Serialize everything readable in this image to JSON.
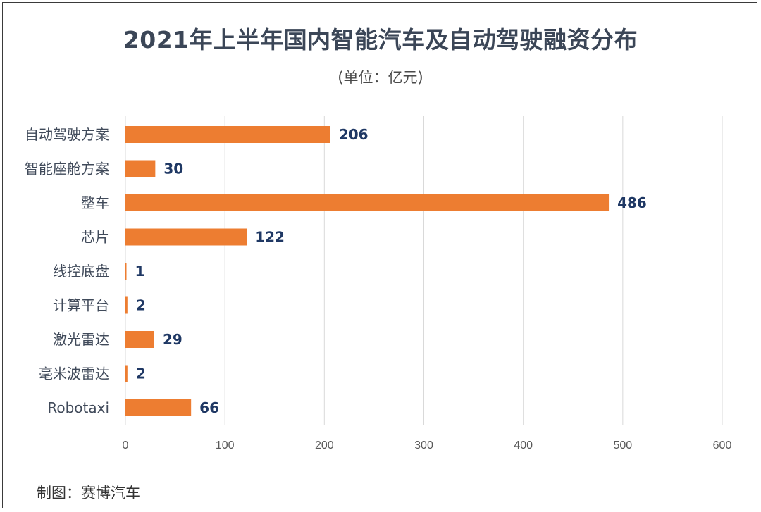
{
  "title": "2021年上半年国内智能汽车及自动驾驶融资分布",
  "subtitle": "(单位：亿元)",
  "source": "制图：赛博汽车",
  "colors": {
    "bar": "#ed7d31",
    "value_label": "#1f3864",
    "grid": "#d9d9d9"
  },
  "chart_data": {
    "type": "bar",
    "orientation": "horizontal",
    "title": "2021年上半年国内智能汽车及自动驾驶融资分布",
    "subtitle": "(单位：亿元)",
    "categories": [
      "自动驾驶方案",
      "智能座舱方案",
      "整车",
      "芯片",
      "线控底盘",
      "计算平台",
      "激光雷达",
      "毫米波雷达",
      "Robotaxi"
    ],
    "values": [
      206,
      30,
      486,
      122,
      1,
      2,
      29,
      2,
      66
    ],
    "xlim": [
      0,
      600
    ],
    "xticks": [
      0,
      100,
      200,
      300,
      400,
      500,
      600
    ],
    "grid": true,
    "legend": "none"
  }
}
